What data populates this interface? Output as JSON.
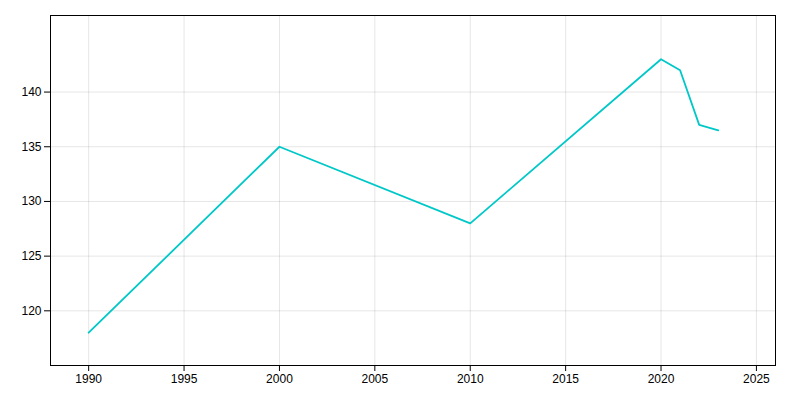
{
  "chart_data": {
    "type": "line",
    "x": [
      1990,
      2000,
      2010,
      2020,
      2021,
      2022,
      2023
    ],
    "values": [
      118,
      135,
      128,
      143,
      142,
      137,
      136.5
    ],
    "color": "#00C8C8",
    "xlim": [
      1988,
      2026
    ],
    "ylim": [
      115,
      147
    ],
    "xticks": [
      1990,
      1995,
      2000,
      2005,
      2010,
      2015,
      2020,
      2025
    ],
    "yticks": [
      120,
      125,
      130,
      135,
      140
    ],
    "grid": true
  }
}
